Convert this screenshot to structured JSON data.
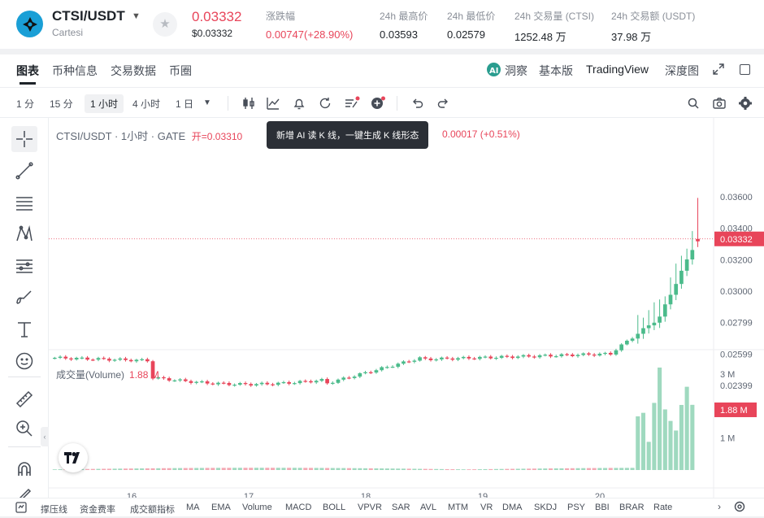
{
  "header": {
    "pair": "CTSI/USDT",
    "pair_name": "Cartesi",
    "price": "0.03332",
    "price_usd": "$0.03332",
    "change_label": "涨跌幅",
    "change_value": "0.00747(+28.90%)",
    "high_label": "24h 最高价",
    "high_value": "0.03593",
    "low_label": "24h 最低价",
    "low_value": "0.02579",
    "vol_label": "24h 交易量 (CTSI)",
    "vol_value": "1252.48 万",
    "amount_label": "24h 交易额 (USDT)",
    "amount_value": "37.98 万"
  },
  "tabs": {
    "chart": "图表",
    "info": "币种信息",
    "trade_data": "交易数据",
    "circle": "币圈",
    "insight": "洞察",
    "basic": "基本版",
    "tradingview": "TradingView",
    "depth": "深度图"
  },
  "timeframes": [
    "1 分",
    "15 分",
    "1 小时",
    "4 小时",
    "1 日"
  ],
  "chart": {
    "legend": "CTSI/USDT · 1小时 · GATE",
    "open_label": "开=0.03310",
    "tooltip": "新增 AI 读 K 线，一键生成 K 线形态",
    "change": "0.00017 (+0.51%)",
    "volume_label": "成交量(Volume)",
    "volume_value": "1.88 M",
    "price_axis": [
      "0.03600",
      "0.03400",
      "0.03200",
      "0.03000",
      "0.02799",
      "0.02599",
      "0.02399"
    ],
    "current_price": "0.03332",
    "volume_axis": [
      "3 M",
      "1 M"
    ],
    "current_volume": "1.88 M",
    "time_axis": [
      "16",
      "17",
      "18",
      "19",
      "20"
    ]
  },
  "indicators": [
    "撑压线",
    "资金费率",
    "成交额指标",
    "MA",
    "EMA",
    "Volume",
    "MACD",
    "BOLL",
    "VPVR",
    "SAR",
    "AVL",
    "MTM",
    "VR",
    "DMA",
    "SKDJ",
    "PSY",
    "BBI",
    "BRAR",
    "Rate"
  ],
  "colors": {
    "up": "#4bbb8b",
    "down": "#e8455a",
    "vol_up": "#9fd9bf",
    "vol_down": "#f3a8b3"
  }
}
